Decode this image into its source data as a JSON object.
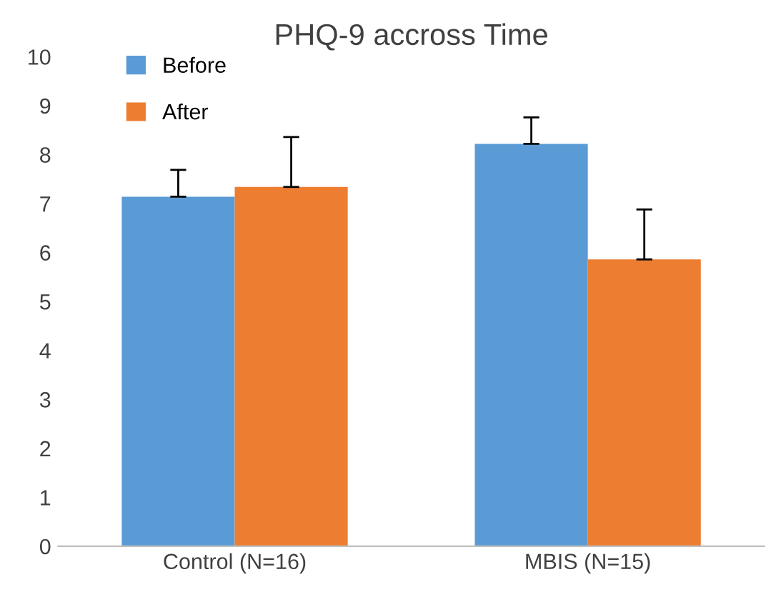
{
  "chart_data": {
    "type": "bar",
    "title": "PHQ-9 accross Time",
    "categories": [
      "Control (N=16)",
      "MBIS (N=15)"
    ],
    "series": [
      {
        "name": "Before",
        "color": "#5b9bd5",
        "values": [
          7.14,
          8.22
        ],
        "errors": [
          [
            7.14,
            7.69
          ],
          [
            8.22,
            8.76
          ]
        ]
      },
      {
        "name": "After",
        "color": "#ed7d31",
        "values": [
          7.34,
          5.86
        ],
        "errors": [
          [
            7.34,
            8.36
          ],
          [
            5.86,
            6.88
          ]
        ]
      }
    ],
    "ylim": [
      0,
      10
    ],
    "yticks": [
      0,
      1,
      2,
      3,
      4,
      5,
      6,
      7,
      8,
      9,
      10
    ],
    "grid": false,
    "legend": "top left"
  }
}
